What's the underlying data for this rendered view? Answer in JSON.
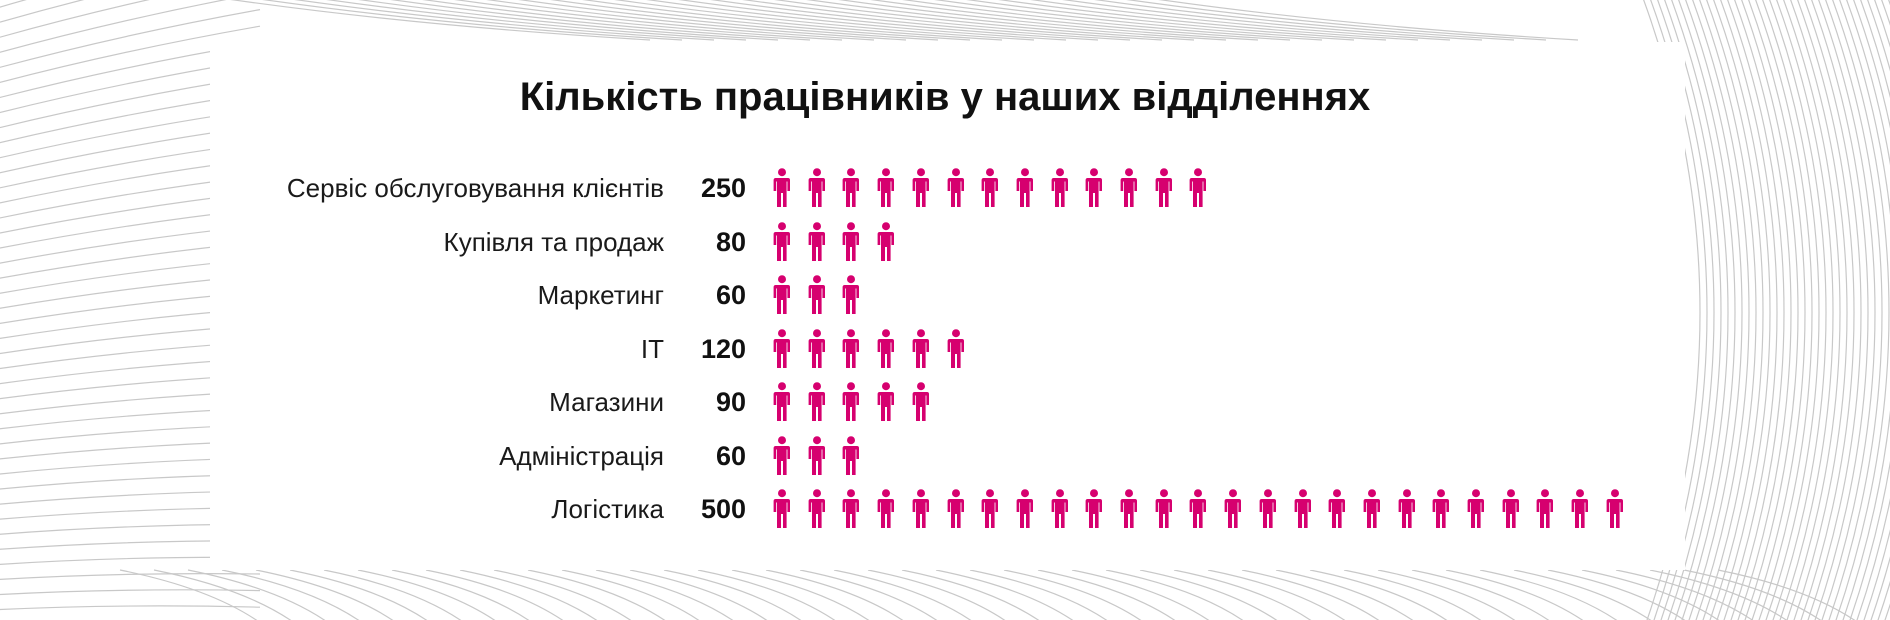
{
  "chart_data": {
    "type": "pictograph",
    "title": "Кількість працівників у наших відділеннях",
    "categories": [
      "Сервіс обслуговування клієнтів",
      "Купівля та продаж",
      "Маркетинг",
      "IT",
      "Магазини",
      "Адміністрація",
      "Логістика"
    ],
    "values": [
      250,
      80,
      60,
      120,
      90,
      60,
      500
    ],
    "value_labels": [
      "250",
      "80",
      "60",
      "120",
      "90",
      "60",
      "500"
    ],
    "icon": "person-icon",
    "icons_per_row": [
      13,
      4,
      3,
      6,
      5,
      3,
      25
    ],
    "accent_color": "#d6006f",
    "background_line_color": "#c8c8c8"
  }
}
